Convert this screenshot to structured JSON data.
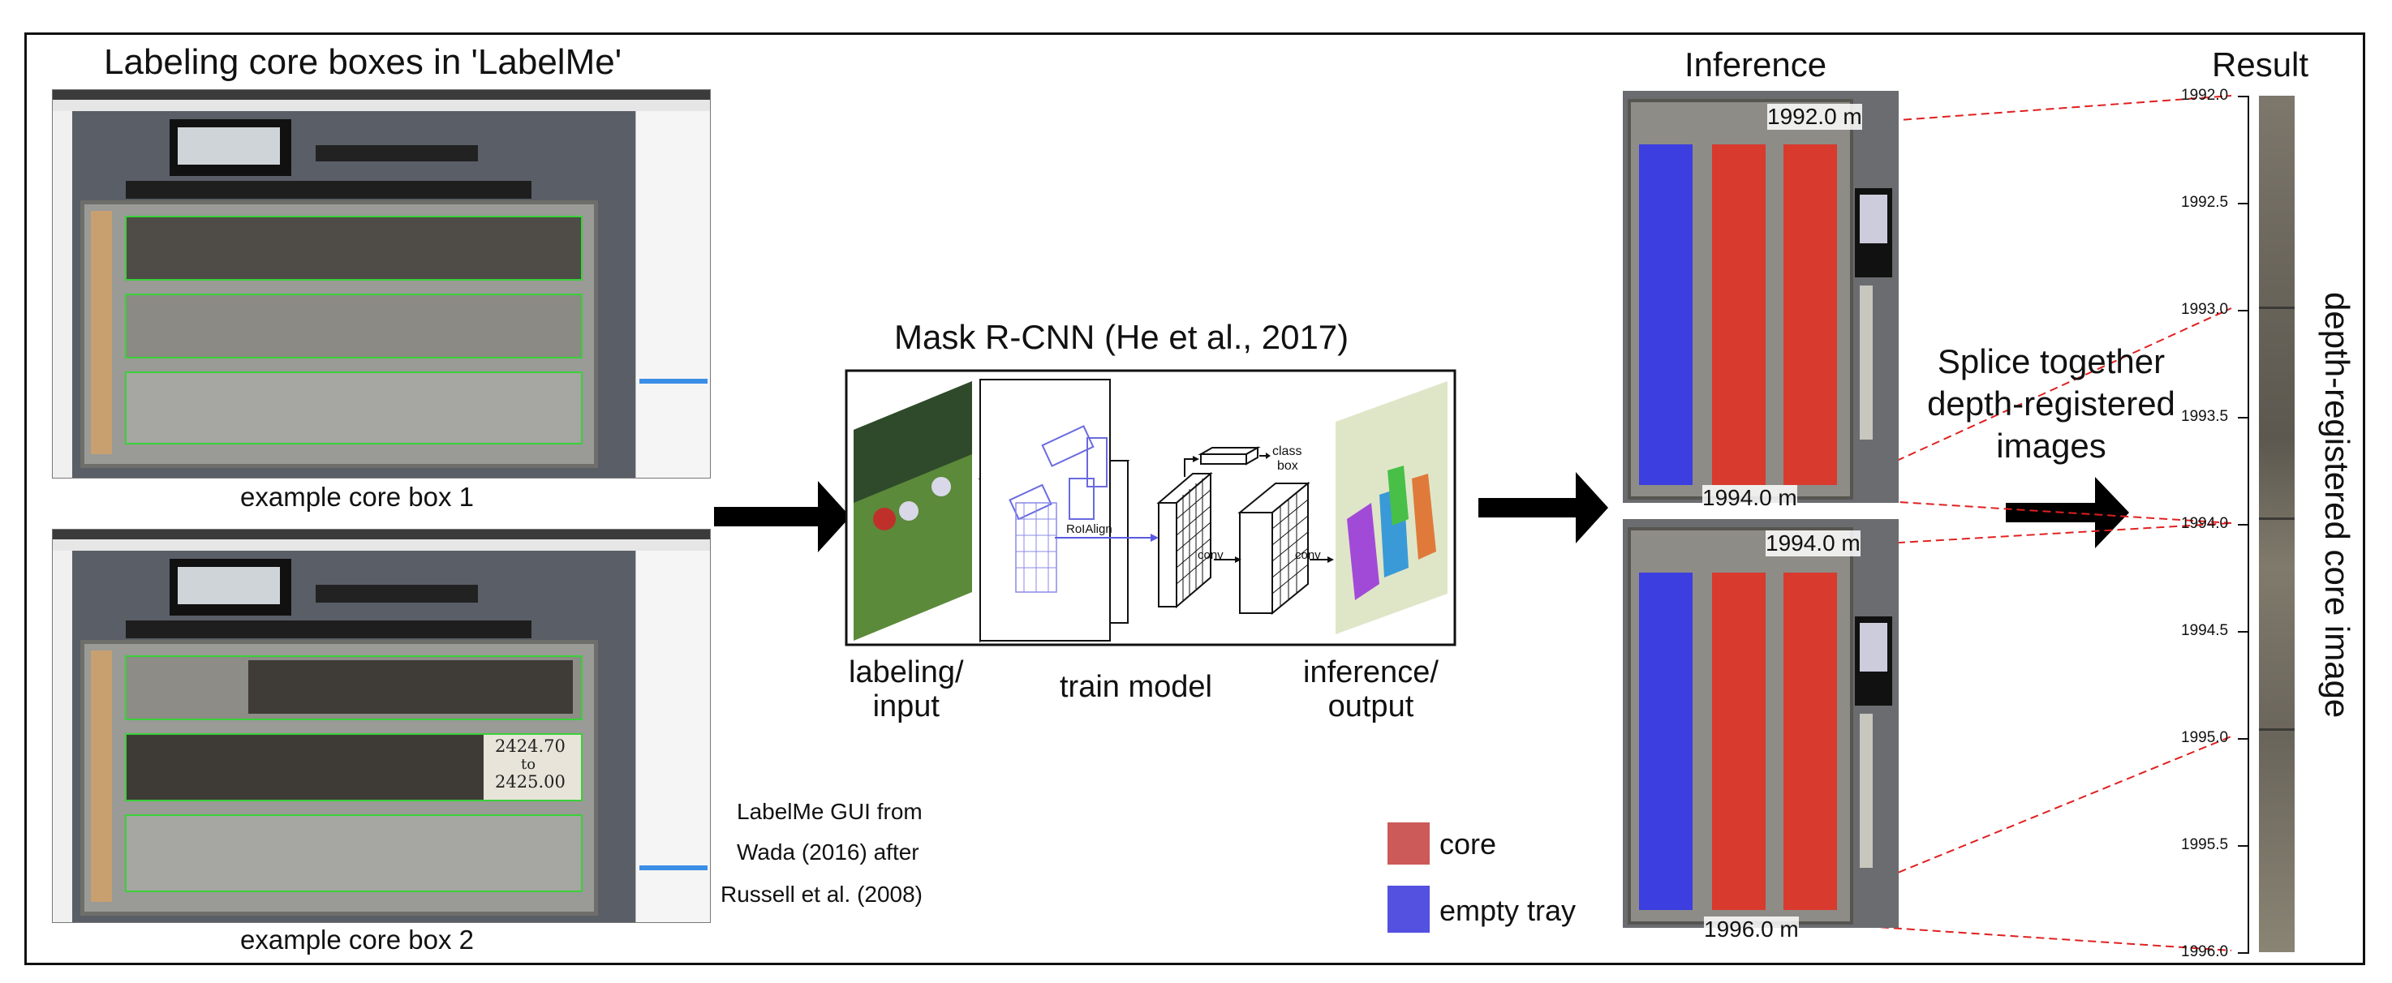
{
  "labeling": {
    "title": "Labeling core boxes in 'LabelMe'",
    "caption1": "example core box 1",
    "caption2": "example core box 2",
    "credit_lines": [
      "LabelMe GUI from",
      "Wada (2016) after",
      "Russell et al. (2008)"
    ],
    "handwriting_lines": [
      "2424.70",
      "to",
      "2425.00"
    ]
  },
  "model": {
    "title": "Mask R-CNN (He et al., 2017)",
    "roialign_label": "RoIAlign",
    "conv_label": "conv",
    "class_box_lines": [
      "class",
      "box"
    ],
    "stage_labels": [
      {
        "lines": [
          "labeling/",
          "input"
        ]
      },
      {
        "lines": [
          "train model"
        ]
      },
      {
        "lines": [
          "inference/",
          "output"
        ]
      }
    ]
  },
  "legend": [
    {
      "label": "core",
      "color": "#cc5a58"
    },
    {
      "label": "empty tray",
      "color": "#5450e0"
    }
  ],
  "inference": {
    "title": "Inference",
    "box1_top": "1992.0 m",
    "box1_bottom": "1994.0 m",
    "box2_top": "1994.0 m",
    "box2_bottom": "1996.0 m",
    "core_mask_color": "#d83a2e",
    "tray_mask_color": "#3c3ee0"
  },
  "splice_lines": [
    "Splice together",
    "depth-registered",
    "images"
  ],
  "result": {
    "title": "Result",
    "vertical_label": "depth-registered core image",
    "ticks": [
      "1992.0",
      "1992.5",
      "1993.0",
      "1993.5",
      "1994.0",
      "1994.5",
      "1995.0",
      "1995.5",
      "1996.0"
    ],
    "connector_color": "#e02020"
  }
}
